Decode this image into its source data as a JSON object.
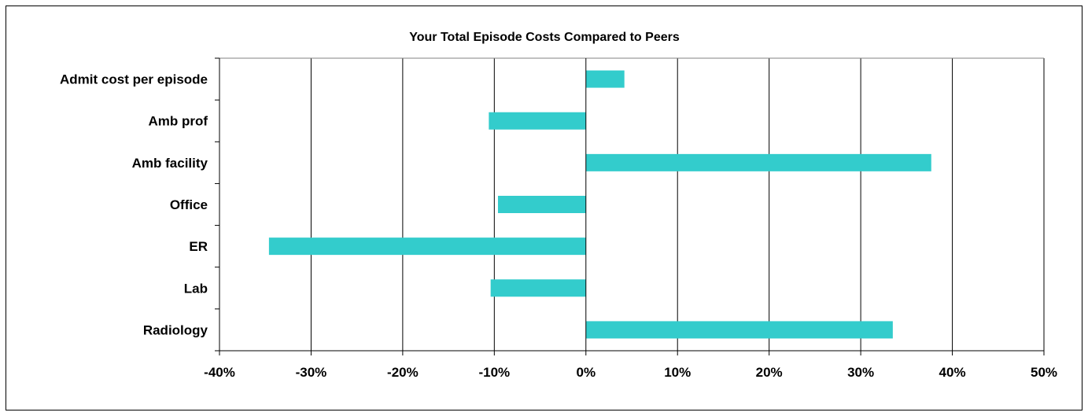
{
  "chart_data": {
    "type": "bar",
    "orientation": "horizontal",
    "title": "Your Total Episode Costs Compared to Peers",
    "xlabel": "",
    "ylabel": "",
    "categories": [
      "Admit cost per episode",
      "Amb prof",
      "Amb facility",
      "Office",
      "ER",
      "Lab",
      "Radiology"
    ],
    "values": [
      4.2,
      -10.6,
      37.7,
      -9.6,
      -34.6,
      -10.4,
      33.5
    ],
    "xlim": [
      -40,
      50
    ],
    "xticks": [
      -40,
      -30,
      -20,
      -10,
      0,
      10,
      20,
      30,
      40,
      50
    ],
    "tick_labels": [
      "-40%",
      "-30%",
      "-20%",
      "-10%",
      "0%",
      "10%",
      "20%",
      "30%",
      "40%",
      "50%"
    ],
    "grid": true,
    "legend": "none",
    "colors": {
      "bar": "#33CCCC",
      "grid": "#000000",
      "axis": "#808080"
    }
  }
}
